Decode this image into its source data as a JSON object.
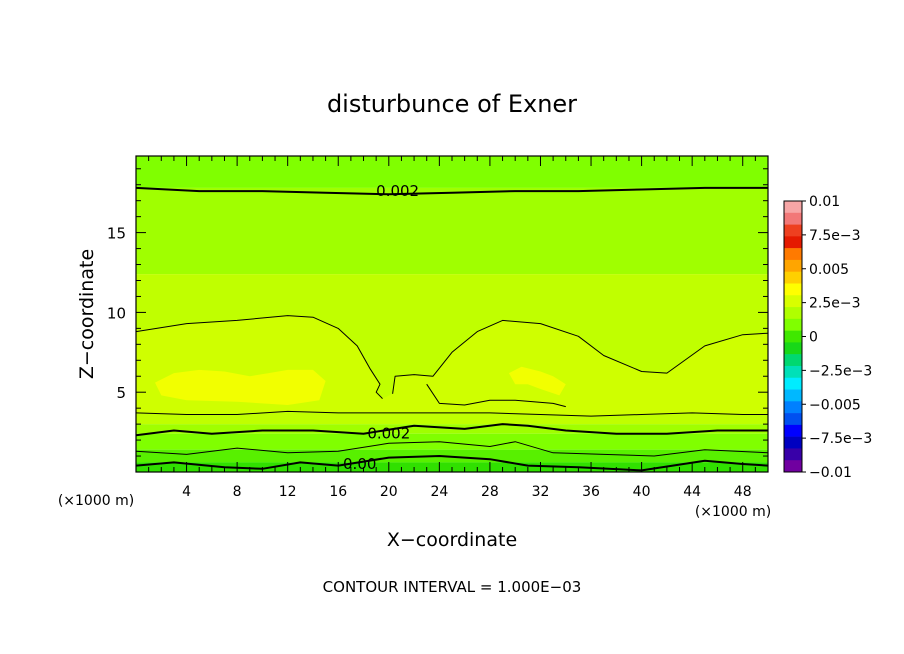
{
  "chart_data": {
    "type": "heatmap",
    "title": "disturbunce of Exner",
    "xlabel": "X−coordinate",
    "ylabel": "Z−coordinate",
    "x_unit": "(×1000 m)",
    "y_unit": "(×1000 m)",
    "footer": "CONTOUR INTERVAL = 1.000E−03",
    "xlim": [
      0,
      50
    ],
    "ylim": [
      0,
      19.8
    ],
    "x_ticks": [
      4,
      8,
      12,
      16,
      20,
      24,
      28,
      32,
      36,
      40,
      44,
      48
    ],
    "x_tick_labels": [
      "4",
      "8",
      "12",
      "16",
      "20",
      "24",
      "28",
      "32",
      "36",
      "40",
      "44",
      "48"
    ],
    "y_ticks": [
      5,
      10,
      15
    ],
    "y_tick_labels": [
      "5",
      "10",
      "15"
    ],
    "colorbar": {
      "min": -0.01,
      "max": 0.01,
      "labels": [
        "0.01",
        "7.5e−3",
        "0.005",
        "2.5e−3",
        "0",
        "−2.5e−3",
        "−0.005",
        "−7.5e−3",
        "−0.01"
      ],
      "colors": [
        "#f7a6a6",
        "#f27878",
        "#ee4020",
        "#e51a00",
        "#ff7a00",
        "#ffa500",
        "#ffd000",
        "#ffff00",
        "#d8ff00",
        "#b0ff00",
        "#80ff00",
        "#40e800",
        "#18d818",
        "#00d870",
        "#00e0b8",
        "#00ecff",
        "#00b8ff",
        "#0080ff",
        "#0050f0",
        "#0000ff",
        "#0000c0",
        "#3800a8",
        "#7000a0"
      ]
    },
    "fill_levels": [
      {
        "value": 0.0035,
        "color": "#f0ff00"
      },
      {
        "value": 0.003,
        "color": "#d8ff00"
      },
      {
        "value": 0.0025,
        "color": "#c0ff00"
      },
      {
        "value": 0.002,
        "color": "#a0ff00"
      },
      {
        "value": 0.0015,
        "color": "#80ff00"
      },
      {
        "value": 0.001,
        "color": "#58f000"
      },
      {
        "value": 0.0005,
        "color": "#30e000"
      },
      {
        "value": 0,
        "color": "#18d840"
      }
    ],
    "contour_labels": [
      {
        "text": "0.002",
        "x": 20.7,
        "y": 17.6
      },
      {
        "text": "0.002",
        "x": 20.0,
        "y": 2.4
      },
      {
        "text": "0.00",
        "x": 17.7,
        "y": 0.5
      }
    ],
    "contours": [
      {
        "level": 0.002,
        "heavy": true,
        "points": [
          [
            0,
            17.8
          ],
          [
            5,
            17.6
          ],
          [
            10,
            17.6
          ],
          [
            15,
            17.5
          ],
          [
            20,
            17.4
          ],
          [
            25,
            17.5
          ],
          [
            30,
            17.6
          ],
          [
            35,
            17.6
          ],
          [
            40,
            17.7
          ],
          [
            45,
            17.8
          ],
          [
            50,
            17.8
          ]
        ]
      },
      {
        "level": 0.003,
        "heavy": false,
        "points": [
          [
            0,
            8.8
          ],
          [
            4,
            9.3
          ],
          [
            8,
            9.5
          ],
          [
            12,
            9.8
          ],
          [
            14,
            9.7
          ],
          [
            16,
            9.0
          ],
          [
            17.5,
            7.9
          ],
          [
            18.5,
            6.5
          ],
          [
            19.3,
            5.5
          ],
          [
            19.0,
            5.0
          ],
          [
            19.5,
            4.6
          ]
        ]
      },
      {
        "level": 0.003,
        "heavy": false,
        "points": [
          [
            20.3,
            4.9
          ],
          [
            20.5,
            6.0
          ],
          [
            22,
            6.1
          ],
          [
            23.5,
            6.0
          ],
          [
            25,
            7.5
          ],
          [
            27,
            8.8
          ],
          [
            29,
            9.5
          ],
          [
            32,
            9.3
          ],
          [
            35,
            8.5
          ],
          [
            37,
            7.3
          ],
          [
            40,
            6.3
          ],
          [
            42,
            6.2
          ],
          [
            45,
            7.9
          ],
          [
            48,
            8.6
          ],
          [
            50,
            8.7
          ]
        ]
      },
      {
        "level": 0.0035,
        "heavy": false,
        "points": [
          [
            23,
            5.5
          ],
          [
            24,
            4.3
          ],
          [
            26,
            4.2
          ],
          [
            28,
            4.5
          ],
          [
            30,
            4.5
          ],
          [
            33,
            4.3
          ],
          [
            34,
            4.1
          ]
        ]
      },
      {
        "level": 0.003,
        "heavy": false,
        "points": [
          [
            0,
            3.7
          ],
          [
            4,
            3.6
          ],
          [
            8,
            3.6
          ],
          [
            12,
            3.8
          ],
          [
            16,
            3.7
          ],
          [
            20,
            3.7
          ],
          [
            24,
            3.7
          ],
          [
            28,
            3.7
          ],
          [
            32,
            3.6
          ],
          [
            36,
            3.5
          ],
          [
            40,
            3.6
          ],
          [
            44,
            3.7
          ],
          [
            48,
            3.6
          ],
          [
            50,
            3.6
          ]
        ]
      },
      {
        "level": 0.002,
        "heavy": true,
        "points": [
          [
            0,
            2.3
          ],
          [
            3,
            2.6
          ],
          [
            6,
            2.4
          ],
          [
            10,
            2.6
          ],
          [
            14,
            2.6
          ],
          [
            18,
            2.4
          ],
          [
            22,
            2.9
          ],
          [
            26,
            2.7
          ],
          [
            29,
            3.0
          ],
          [
            31,
            2.9
          ],
          [
            34,
            2.6
          ],
          [
            38,
            2.4
          ],
          [
            42,
            2.4
          ],
          [
            46,
            2.6
          ],
          [
            50,
            2.6
          ]
        ]
      },
      {
        "level": 0.001,
        "heavy": false,
        "points": [
          [
            0,
            1.3
          ],
          [
            4,
            1.1
          ],
          [
            8,
            1.5
          ],
          [
            12,
            1.2
          ],
          [
            16,
            1.3
          ],
          [
            20,
            1.8
          ],
          [
            24,
            1.9
          ],
          [
            28,
            1.6
          ],
          [
            30,
            1.9
          ],
          [
            33,
            1.2
          ],
          [
            37,
            1.1
          ],
          [
            41,
            1.0
          ],
          [
            45,
            1.4
          ],
          [
            50,
            1.2
          ]
        ]
      },
      {
        "level": 0.0,
        "heavy": true,
        "points": [
          [
            0,
            0.4
          ],
          [
            3,
            0.6
          ],
          [
            7,
            0.3
          ],
          [
            10,
            0.2
          ],
          [
            13,
            0.6
          ],
          [
            16,
            0.4
          ],
          [
            20,
            0.9
          ],
          [
            24,
            1.0
          ],
          [
            28,
            0.8
          ],
          [
            31,
            0.4
          ],
          [
            35,
            0.3
          ],
          [
            40,
            0.1
          ],
          [
            45,
            0.7
          ],
          [
            48,
            0.5
          ],
          [
            50,
            0.4
          ]
        ]
      }
    ],
    "regions": [
      {
        "color": "#cfff00",
        "points": [
          [
            0,
            8.8
          ],
          [
            4,
            9.3
          ],
          [
            8,
            9.5
          ],
          [
            12,
            9.8
          ],
          [
            14,
            9.7
          ],
          [
            16,
            9.0
          ],
          [
            17.5,
            7.9
          ],
          [
            18.5,
            6.5
          ],
          [
            19.3,
            5.5
          ],
          [
            19.0,
            5.0
          ],
          [
            19.5,
            4.6
          ],
          [
            20.3,
            4.9
          ],
          [
            20.5,
            6.0
          ],
          [
            22,
            6.1
          ],
          [
            23.5,
            6.0
          ],
          [
            25,
            7.5
          ],
          [
            27,
            8.8
          ],
          [
            29,
            9.5
          ],
          [
            32,
            9.3
          ],
          [
            35,
            8.5
          ],
          [
            37,
            7.3
          ],
          [
            40,
            6.3
          ],
          [
            42,
            6.2
          ],
          [
            45,
            7.9
          ],
          [
            48,
            8.6
          ],
          [
            50,
            8.7
          ],
          [
            50,
            3.6
          ],
          [
            44,
            3.7
          ],
          [
            36,
            3.5
          ],
          [
            28,
            3.7
          ],
          [
            20,
            3.7
          ],
          [
            12,
            3.8
          ],
          [
            4,
            3.6
          ],
          [
            0,
            3.7
          ]
        ]
      },
      {
        "color": "#f2ff00",
        "points": [
          [
            1.5,
            5.6
          ],
          [
            3,
            6.2
          ],
          [
            5,
            6.4
          ],
          [
            7,
            6.3
          ],
          [
            9,
            6.0
          ],
          [
            10.5,
            6.2
          ],
          [
            12,
            6.4
          ],
          [
            14,
            6.4
          ],
          [
            15,
            5.7
          ],
          [
            14.5,
            4.5
          ],
          [
            12,
            4.2
          ],
          [
            8,
            4.4
          ],
          [
            4,
            4.5
          ],
          [
            2,
            4.8
          ]
        ]
      },
      {
        "color": "#f2ff00",
        "points": [
          [
            29.5,
            6.2
          ],
          [
            30.5,
            6.6
          ],
          [
            32,
            6.3
          ],
          [
            33,
            6.0
          ],
          [
            34,
            5.5
          ],
          [
            33.5,
            4.8
          ],
          [
            32,
            5.2
          ],
          [
            31,
            5.5
          ],
          [
            30,
            5.5
          ]
        ]
      }
    ]
  }
}
